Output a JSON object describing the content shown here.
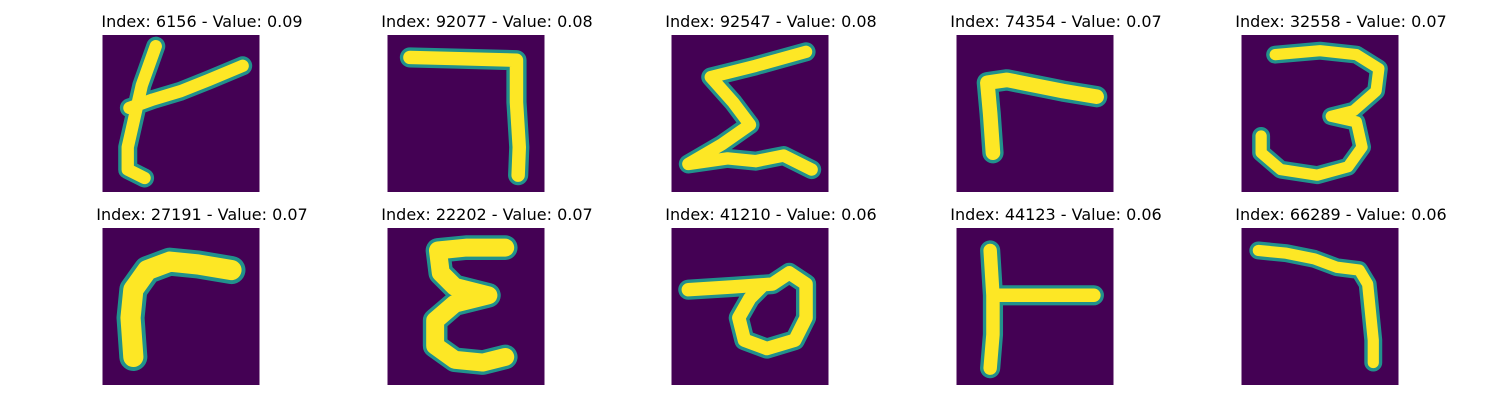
{
  "figure": {
    "colors": {
      "background": "#440154",
      "stroke_core": "#fde725",
      "stroke_edge": "#21918c"
    },
    "panels": [
      {
        "title": "Index: 6156 - Value: 0.09",
        "index": 6156,
        "value": 0.09
      },
      {
        "title": "Index: 92077 - Value: 0.08",
        "index": 92077,
        "value": 0.08
      },
      {
        "title": "Index: 92547 - Value: 0.08",
        "index": 92547,
        "value": 0.08
      },
      {
        "title": "Index: 74354 - Value: 0.07",
        "index": 74354,
        "value": 0.07
      },
      {
        "title": "Index: 32558 - Value: 0.07",
        "index": 32558,
        "value": 0.07
      },
      {
        "title": "Index: 27191 - Value: 0.07",
        "index": 27191,
        "value": 0.07
      },
      {
        "title": "Index: 22202 - Value: 0.07",
        "index": 22202,
        "value": 0.07
      },
      {
        "title": "Index: 41210 - Value: 0.06",
        "index": 41210,
        "value": 0.06
      },
      {
        "title": "Index: 44123 - Value: 0.06",
        "index": 44123,
        "value": 0.06
      },
      {
        "title": "Index: 66289 - Value: 0.06",
        "index": 66289,
        "value": 0.06
      }
    ]
  }
}
